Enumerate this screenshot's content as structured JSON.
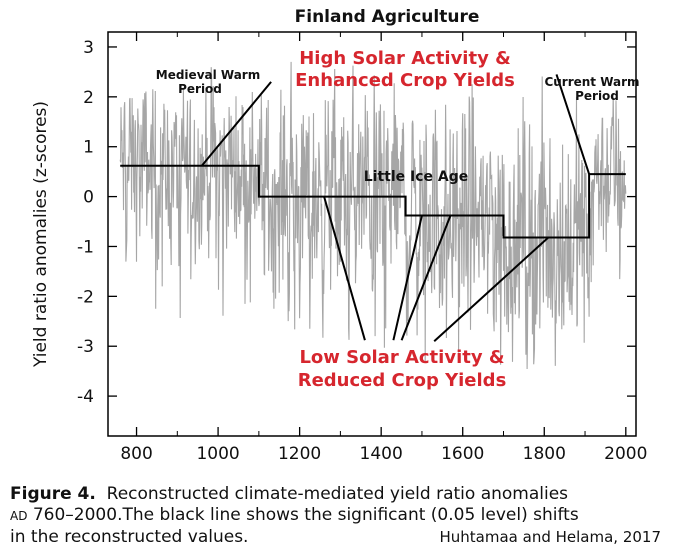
{
  "chart_data": {
    "type": "line",
    "title": "Finland Agriculture",
    "xlabel": "",
    "ylabel": "Yield ratio anomalies (z-scores)",
    "xlim": [
      730,
      2025
    ],
    "ylim": [
      -4.8,
      3.3
    ],
    "xticks": [
      800,
      1000,
      1200,
      1400,
      1600,
      1800,
      2000
    ],
    "yticks": [
      3,
      2,
      1,
      0,
      -1,
      -2,
      -3,
      -4
    ],
    "grid": false,
    "series": [
      {
        "name": "",
        "kind": "annual-anomalies",
        "color": "#a6a6a6",
        "range_x": [
          760,
          2000
        ],
        "segments": [
          {
            "start": 760,
            "end": 1100,
            "mean": 0.6,
            "spread": 0.75
          },
          {
            "start": 1100,
            "end": 1460,
            "mean": 0.0,
            "spread": 0.95
          },
          {
            "start": 1460,
            "end": 1700,
            "mean": -0.35,
            "spread": 1.0
          },
          {
            "start": 1700,
            "end": 1910,
            "mean": -0.8,
            "spread": 1.1
          },
          {
            "start": 1910,
            "end": 2000,
            "mean": 0.45,
            "spread": 0.75
          }
        ]
      },
      {
        "name": "",
        "kind": "significant-shifts",
        "color": "#000000",
        "steps": [
          {
            "start": 760,
            "end": 1100,
            "value": 0.62
          },
          {
            "start": 1100,
            "end": 1460,
            "value": 0.0
          },
          {
            "start": 1460,
            "end": 1700,
            "value": -0.38
          },
          {
            "start": 1700,
            "end": 1910,
            "value": -0.82
          },
          {
            "start": 1910,
            "end": 2000,
            "value": 0.45
          }
        ]
      }
    ],
    "annotations": {
      "medieval": [
        "Medieval Warm",
        "Period"
      ],
      "current": [
        "Current Warm",
        "Period"
      ],
      "lia": "Little Ice Age",
      "high": [
        "High Solar Activity &",
        "Enhanced Crop Yields"
      ],
      "low": [
        "Low Solar Activity &",
        "Reduced Crop Yields"
      ]
    },
    "pointers": [
      {
        "from": [
          960,
          0.62
        ],
        "to": [
          1130,
          2.3
        ]
      },
      {
        "from": [
          1910,
          0.45
        ],
        "to": [
          1830,
          2.45
        ]
      },
      {
        "from": [
          1260,
          0.0
        ],
        "to": [
          1360,
          -2.88
        ]
      },
      {
        "from": [
          1500,
          -0.38
        ],
        "to": [
          1430,
          -2.88
        ]
      },
      {
        "from": [
          1570,
          -0.38
        ],
        "to": [
          1450,
          -2.88
        ]
      },
      {
        "from": [
          1810,
          -0.82
        ],
        "to": [
          1530,
          -2.9
        ]
      }
    ],
    "colors": {
      "highlight": "#d6262e",
      "text": "#111111"
    }
  },
  "caption": {
    "figure": "Figure 4.",
    "line1": "Reconstructed climate-mediated yield ratio anomalies",
    "ad": "AD",
    "line2": " 760–2000.The black line shows the significant (0.05 level) shifts",
    "line3": "in the reconstructed values."
  },
  "credit": "Huhtamaa and Helama, 2017"
}
